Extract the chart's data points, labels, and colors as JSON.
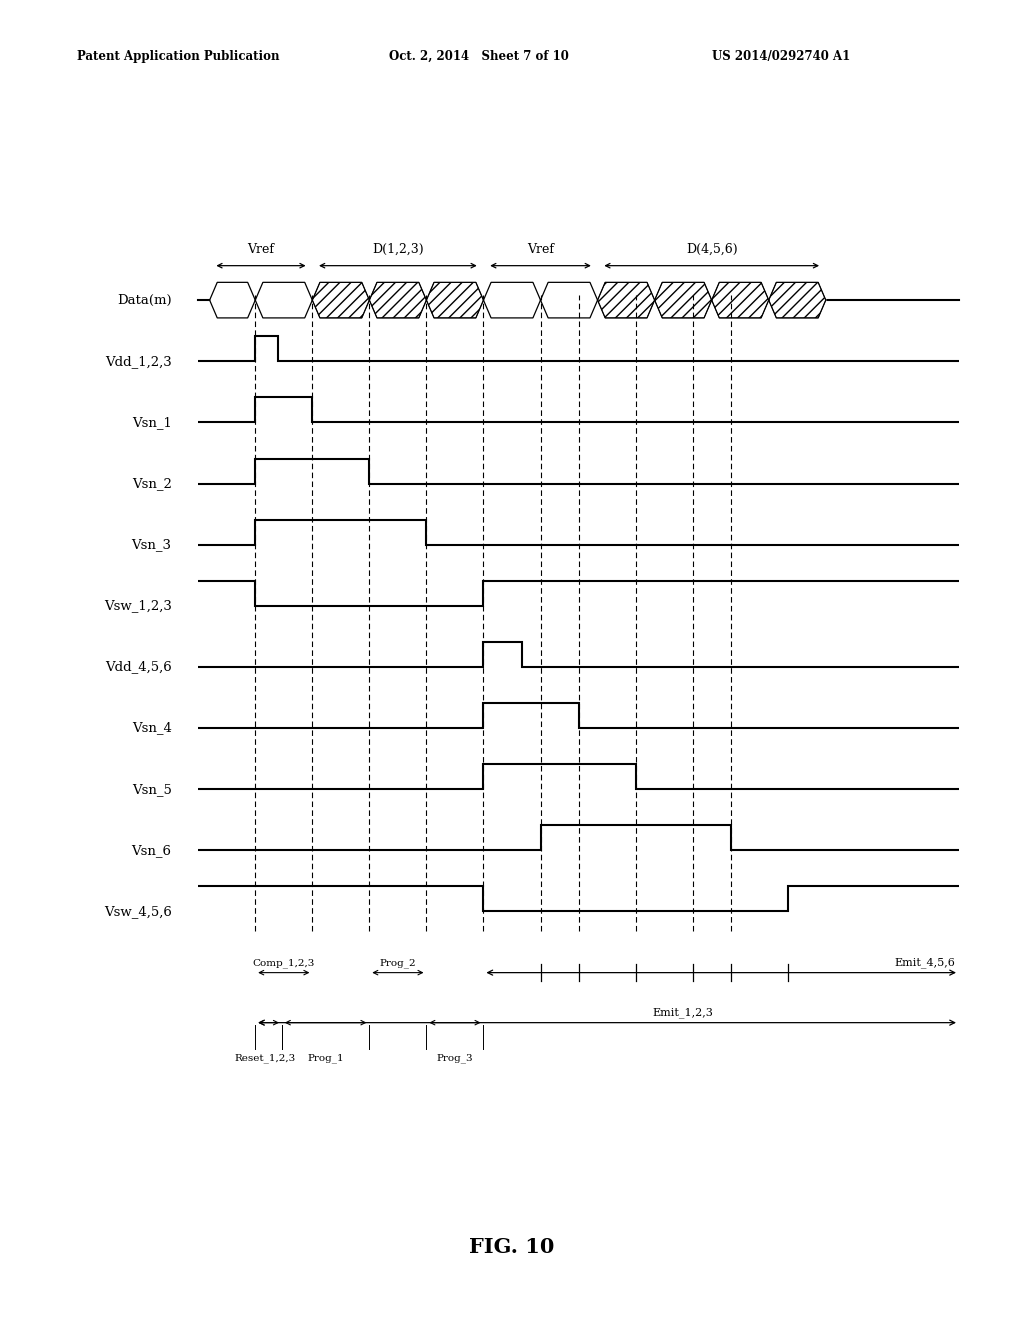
{
  "header_left": "Patent Application Publication",
  "header_mid": "Oct. 2, 2014   Sheet 7 of 10",
  "header_right": "US 2014/0292740 A1",
  "fig_label": "FIG. 10",
  "background": "#ffffff",
  "signal_labels": [
    "Data(m)",
    "Vdd_1,2,3",
    "Vsn_1",
    "Vsn_2",
    "Vsn_3",
    "Vsw_1,2,3",
    "Vdd_4,5,6",
    "Vsn_4",
    "Vsn_5",
    "Vsn_6",
    "Vsw_4,5,6"
  ],
  "vref1_label": "Vref",
  "d123_label": "D(1,2,3)",
  "vref2_label": "Vref",
  "d456_label": "D(4,5,6)",
  "comp123_label": "Comp_1,2,3",
  "prog2_label": "Prog_2",
  "emit456_label": "Emit_4,5,6",
  "reset123_label": "Reset_1,2,3",
  "prog1_label": "Prog_1",
  "prog3_label": "Prog_3",
  "emit123_label": "Emit_1,2,3",
  "t_total": 20,
  "t_vdd123_rise": 1.5,
  "t_vdd123_fall": 2.1,
  "t_vsn1_rise": 1.5,
  "t_vsn1_fall": 3.0,
  "t_vsn2_rise": 1.5,
  "t_vsn2_fall": 4.5,
  "t_vsn3_rise": 1.5,
  "t_vsn3_fall": 6.0,
  "t_vsw123_fall": 1.5,
  "t_vsw123_rise": 7.5,
  "t_vdd456_rise": 7.5,
  "t_vdd456_fall": 8.5,
  "t_vsn4_rise": 7.5,
  "t_vsn4_fall": 10.0,
  "t_vsn5_rise": 7.5,
  "t_vsn5_fall": 11.5,
  "t_vsn6_rise": 9.0,
  "t_vsn6_fall": 14.0,
  "t_vsw456_fall": 7.5,
  "t_vsw456_rise": 15.5,
  "vlines": [
    1.5,
    3.0,
    4.5,
    6.0,
    7.5,
    9.0,
    10.0,
    11.5,
    13.0,
    14.0
  ],
  "data_cells": [
    [
      0.3,
      1.5,
      false
    ],
    [
      1.5,
      3.0,
      false
    ],
    [
      3.0,
      4.5,
      true
    ],
    [
      4.5,
      6.0,
      true
    ],
    [
      6.0,
      7.5,
      true
    ],
    [
      7.5,
      9.0,
      false
    ],
    [
      9.0,
      10.5,
      false
    ],
    [
      10.5,
      12.0,
      true
    ],
    [
      12.0,
      13.5,
      true
    ],
    [
      13.5,
      15.0,
      true
    ],
    [
      15.0,
      16.5,
      true
    ]
  ]
}
